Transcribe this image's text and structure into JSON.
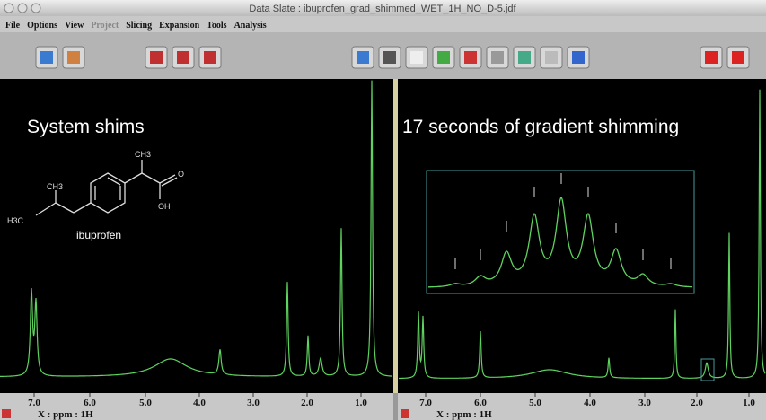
{
  "window": {
    "title": "Data Slate : ibuprofen_grad_shimmed_WET_1H_NO_D-5.jdf"
  },
  "menu": [
    "File",
    "Options",
    "View",
    "Project",
    "Slicing",
    "Expansion",
    "Tools",
    "Analysis"
  ],
  "panels": [
    {
      "label": "System shims",
      "axis_ticks": [
        "7.0",
        "6.0",
        "5.0",
        "4.0",
        "3.0",
        "2.0",
        "1.0"
      ],
      "axis_label": "X : ppm : 1H"
    },
    {
      "label": "17 seconds of gradient shimming",
      "axis_ticks": [
        "7.0",
        "6.0",
        "5.0",
        "4.0",
        "3.0",
        "2.0",
        "1.0"
      ],
      "axis_label": "X : ppm : 1H"
    }
  ],
  "molecule": {
    "name": "ibuprofen",
    "groups": [
      "CH3",
      "H3C",
      "CH3",
      "O",
      "OH"
    ]
  }
}
